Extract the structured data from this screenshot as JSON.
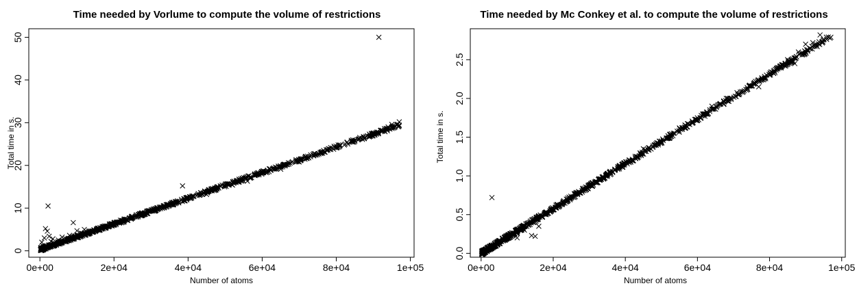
{
  "chart_data": [
    {
      "type": "scatter",
      "title": "Time needed by Vorlume to compute the volume of restrictions",
      "xlabel": "Number of atoms",
      "ylabel": "Total time in s.",
      "xlim": [
        -3000,
        101000
      ],
      "ylim": [
        -1.5,
        52
      ],
      "x_ticks": [
        0,
        20000,
        40000,
        60000,
        80000,
        100000
      ],
      "x_tick_labels": [
        "0e+00",
        "2e+04",
        "4e+04",
        "6e+04",
        "8e+04",
        "1e+05"
      ],
      "y_ticks": [
        0,
        10,
        20,
        30,
        40,
        50
      ],
      "y_tick_labels": [
        "0",
        "10",
        "20",
        "30",
        "40",
        "50"
      ],
      "marker": "x",
      "grid": false,
      "trend": {
        "slope": 0.0003,
        "intercept": 0.3,
        "x_max": 97000,
        "noise": 0.35
      },
      "points": [
        [
          300,
          0.3
        ],
        [
          500,
          2.0
        ],
        [
          800,
          1.2
        ],
        [
          1200,
          3.0
        ],
        [
          1500,
          5.2
        ],
        [
          2000,
          4.6
        ],
        [
          2200,
          10.5
        ],
        [
          2500,
          3.4
        ],
        [
          3000,
          2.2
        ],
        [
          3500,
          2.8
        ],
        [
          4000,
          1.5
        ],
        [
          5000,
          2.5
        ],
        [
          6000,
          3.2
        ],
        [
          7000,
          2.8
        ],
        [
          8000,
          3.6
        ],
        [
          9000,
          6.6
        ],
        [
          10000,
          4.7
        ],
        [
          11000,
          4.2
        ],
        [
          12000,
          5.0
        ],
        [
          38500,
          15.2
        ],
        [
          45000,
          13.2
        ],
        [
          52000,
          15.4
        ],
        [
          56000,
          16.3
        ],
        [
          60000,
          18.2
        ],
        [
          65000,
          19.1
        ],
        [
          70000,
          20.8
        ],
        [
          75000,
          22.5
        ],
        [
          76000,
          23.2
        ],
        [
          80000,
          24.1
        ],
        [
          85000,
          25.6
        ],
        [
          88000,
          26.8
        ],
        [
          90000,
          27.4
        ],
        [
          91000,
          27.8
        ],
        [
          91500,
          50.0
        ],
        [
          92000,
          28.2
        ],
        [
          93000,
          28.6
        ],
        [
          94000,
          29.0
        ],
        [
          95000,
          29.6
        ],
        [
          97000,
          30.2
        ]
      ]
    },
    {
      "type": "scatter",
      "title": "Time needed by Mc Conkey et al. to compute the volume of restrictions",
      "xlabel": "Number of atoms",
      "ylabel": "Total time in s.",
      "xlim": [
        -3000,
        101000
      ],
      "ylim": [
        -0.05,
        2.9
      ],
      "x_ticks": [
        0,
        20000,
        40000,
        60000,
        80000,
        100000
      ],
      "x_tick_labels": [
        "0e+00",
        "2e+04",
        "4e+04",
        "6e+04",
        "8e+04",
        "1e+05"
      ],
      "y_ticks": [
        0,
        0.5,
        1,
        1.5,
        2,
        2.5
      ],
      "y_tick_labels": [
        "0.0",
        "0.5",
        "1.0",
        "1.5",
        "2.0",
        "2.5"
      ],
      "marker": "x",
      "grid": false,
      "trend": {
        "slope": 2.89e-05,
        "intercept": 0.0,
        "x_max": 97000,
        "noise": 0.025
      },
      "points": [
        [
          300,
          0.01
        ],
        [
          1000,
          0.02
        ],
        [
          2500,
          0.08
        ],
        [
          3000,
          0.72
        ],
        [
          5000,
          0.15
        ],
        [
          8000,
          0.25
        ],
        [
          10000,
          0.2
        ],
        [
          12000,
          0.3
        ],
        [
          14000,
          0.23
        ],
        [
          15000,
          0.22
        ],
        [
          16000,
          0.35
        ],
        [
          33000,
          0.95
        ],
        [
          45000,
          1.35
        ],
        [
          55000,
          1.62
        ],
        [
          61000,
          1.75
        ],
        [
          64000,
          1.9
        ],
        [
          68000,
          2.0
        ],
        [
          73000,
          2.1
        ],
        [
          77000,
          2.15
        ],
        [
          80000,
          2.3
        ],
        [
          83000,
          2.42
        ],
        [
          85000,
          2.5
        ],
        [
          87000,
          2.45
        ],
        [
          88000,
          2.6
        ],
        [
          90000,
          2.7
        ],
        [
          92000,
          2.72
        ],
        [
          94000,
          2.82
        ],
        [
          97000,
          2.79
        ]
      ]
    }
  ]
}
